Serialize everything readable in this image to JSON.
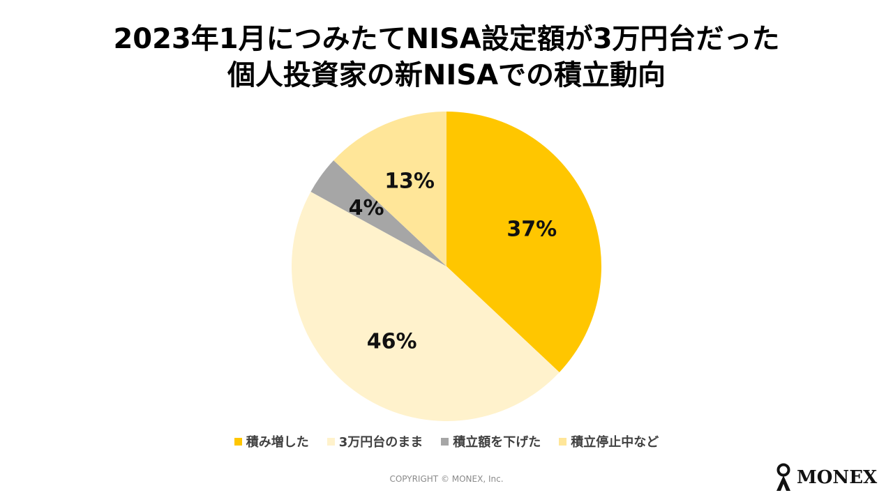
{
  "title_line1": "2023年1月につみたてNISA設定額が3万円台だった",
  "title_line2": "個人投資家の新NISAでの積立動向",
  "chart_data": {
    "type": "pie",
    "slices": [
      {
        "label": "積み増した",
        "value": 37,
        "display": "37%",
        "color": "#FFC600"
      },
      {
        "label": "3万円台のまま",
        "value": 46,
        "display": "46%",
        "color": "#FFF2CC"
      },
      {
        "label": "積立額を下げた",
        "value": 4,
        "display": "4%",
        "color": "#A6A6A6"
      },
      {
        "label": "積立停止中など",
        "value": 13,
        "display": "13%",
        "color": "#FFE699"
      }
    ],
    "legend_position": "bottom"
  },
  "copyright": "COPYRIGHT © MONEX, Inc.",
  "logo": {
    "text": "MONEX",
    "icon": "monex-mark-icon"
  }
}
